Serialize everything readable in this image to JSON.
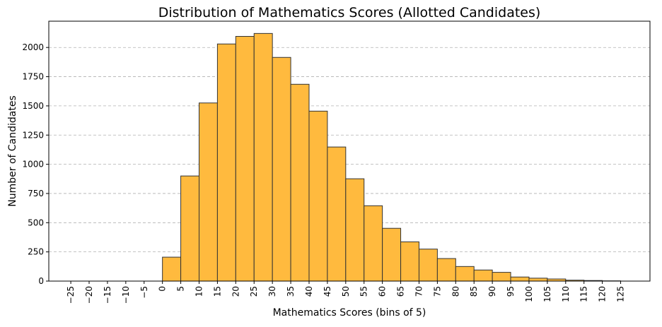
{
  "chart_data": {
    "type": "bar",
    "title": "Distribution of Mathematics Scores (Allotted Candidates)",
    "xlabel": "Mathematics Scores (bins of 5)",
    "ylabel": "Number of Candidates",
    "bin_width": 5,
    "bin_starts": [
      0,
      5,
      10,
      15,
      20,
      25,
      30,
      35,
      40,
      45,
      50,
      55,
      60,
      65,
      70,
      75,
      80,
      85,
      90,
      95,
      100,
      105,
      110,
      115,
      120
    ],
    "values": [
      205,
      900,
      1525,
      2030,
      2095,
      2120,
      1915,
      1685,
      1455,
      1148,
      876,
      645,
      452,
      336,
      274,
      193,
      125,
      95,
      75,
      35,
      25,
      18,
      8,
      5,
      2
    ],
    "xlim": [
      -31,
      133
    ],
    "ylim": [
      0,
      2225
    ],
    "xticks": [
      -25,
      -20,
      -15,
      -10,
      -5,
      0,
      5,
      10,
      15,
      20,
      25,
      30,
      35,
      40,
      45,
      50,
      55,
      60,
      65,
      70,
      75,
      80,
      85,
      90,
      95,
      100,
      105,
      110,
      115,
      120,
      125
    ],
    "xtick_labels": [
      "−25",
      "−20",
      "−15",
      "−10",
      "−5",
      "0",
      "5",
      "10",
      "15",
      "20",
      "25",
      "30",
      "35",
      "40",
      "45",
      "50",
      "55",
      "60",
      "65",
      "70",
      "75",
      "80",
      "85",
      "90",
      "95",
      "100",
      "105",
      "110",
      "115",
      "120",
      "125"
    ],
    "yticks": [
      0,
      250,
      500,
      750,
      1000,
      1250,
      1500,
      1750,
      2000
    ],
    "ytick_labels": [
      "0",
      "250",
      "500",
      "750",
      "1000",
      "1250",
      "1500",
      "1750",
      "2000"
    ],
    "grid": "y-dashed",
    "colors": {
      "bar_fill": "#FFBA3E",
      "bar_edge": "#333333",
      "grid": "#b0b0b0"
    }
  }
}
